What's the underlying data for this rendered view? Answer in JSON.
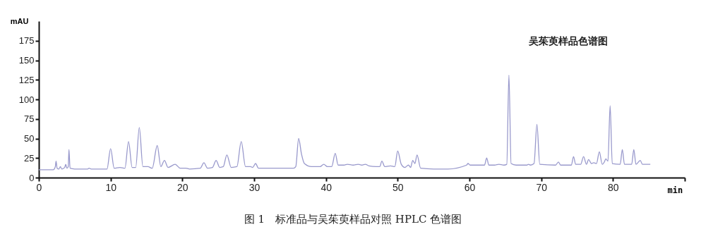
{
  "chart_data": {
    "type": "line",
    "title": "吴茱萸样品色谱图",
    "xlabel": "min",
    "ylabel": "mAU",
    "annotations": [
      "图 1　标准品与吴茱萸样品对照 HPLC 色谱图"
    ],
    "xlim": [
      0,
      90
    ],
    "xticks": [
      0,
      10,
      20,
      30,
      40,
      50,
      60,
      70,
      80,
      {
        "value": 90,
        "label": null
      }
    ],
    "ylim": [
      0,
      200
    ],
    "yticks": [
      0,
      25,
      50,
      75,
      100,
      125,
      150,
      175
    ],
    "grid": false,
    "marker": "none",
    "line_style": "solid",
    "series": [
      {
        "color": "#9999cc",
        "x": [
          0,
          2.0,
          2.3,
          2.4,
          2.55,
          2.8,
          3.0,
          3.2,
          3.6,
          3.75,
          3.9,
          4.1,
          4.2,
          4.35,
          5,
          6.8,
          7,
          7.3,
          9.5,
          10,
          10.5,
          11.3,
          12,
          12.5,
          13,
          13.5,
          14,
          14.5,
          15.2,
          15.8,
          16.5,
          17,
          17.5,
          18,
          19,
          19.7,
          20.5,
          21,
          22.5,
          23,
          23.5,
          24.2,
          24.7,
          25.2,
          25.7,
          26.2,
          26.8,
          27.6,
          28.2,
          28.8,
          29.5,
          29.8,
          30.2,
          30.6,
          33,
          35.5,
          35.8,
          36.2,
          36.6,
          37,
          38,
          39.2,
          39.7,
          40.2,
          40.8,
          41.3,
          41.7,
          42.5,
          43,
          43.8,
          44.5,
          45,
          45.5,
          46,
          47,
          47.5,
          47.8,
          48.2,
          49,
          49.6,
          50,
          50.5,
          51,
          51.5,
          51.8,
          52.1,
          52.4,
          52.7,
          53.2,
          55,
          57,
          59.6,
          59.8,
          60.1,
          62.1,
          62.4,
          62.7,
          63.5,
          64.1,
          64.8,
          65.2,
          65.5,
          65.8,
          66.5,
          68,
          68.2,
          68.5,
          69,
          69.4,
          69.8,
          72,
          72.4,
          72.7,
          73.5,
          74.2,
          74.5,
          74.8,
          75.5,
          75.9,
          76.3,
          76.6,
          77,
          77.3,
          77.7,
          78.1,
          78.5,
          78.8,
          79,
          79.3,
          79.6,
          79.9,
          81,
          81.3,
          81.6,
          82.6,
          82.9,
          83.2,
          83.8,
          84.1,
          85.2
        ],
        "values": [
          10,
          10,
          14,
          21,
          12,
          11,
          14,
          11,
          13,
          17,
          12,
          14,
          36,
          12,
          11,
          11,
          12,
          11,
          11,
          37,
          12,
          13,
          12,
          46,
          13,
          13,
          64,
          14,
          14,
          12,
          41,
          14,
          22,
          13,
          17,
          12,
          12,
          11,
          12,
          19,
          12,
          13,
          22,
          13,
          14,
          29,
          13,
          14,
          46,
          14,
          14,
          13,
          18,
          12,
          12,
          12,
          14,
          50,
          30,
          18,
          14,
          14,
          17,
          14,
          14,
          31,
          16,
          16,
          17,
          16,
          17,
          16,
          17,
          15,
          14,
          14,
          21,
          14,
          15,
          14,
          34,
          17,
          13,
          16,
          13,
          22,
          18,
          29,
          12,
          11,
          11,
          16,
          18,
          16,
          16,
          25,
          16,
          16,
          17,
          16,
          17,
          131,
          18,
          16,
          16,
          17,
          16,
          18,
          68,
          17,
          16,
          20,
          16,
          16,
          16,
          27,
          17,
          17,
          27,
          17,
          23,
          18,
          19,
          18,
          33,
          17,
          20,
          24,
          21,
          92,
          18,
          17,
          36,
          17,
          17,
          36,
          17,
          22,
          17,
          17
        ]
      }
    ]
  }
}
